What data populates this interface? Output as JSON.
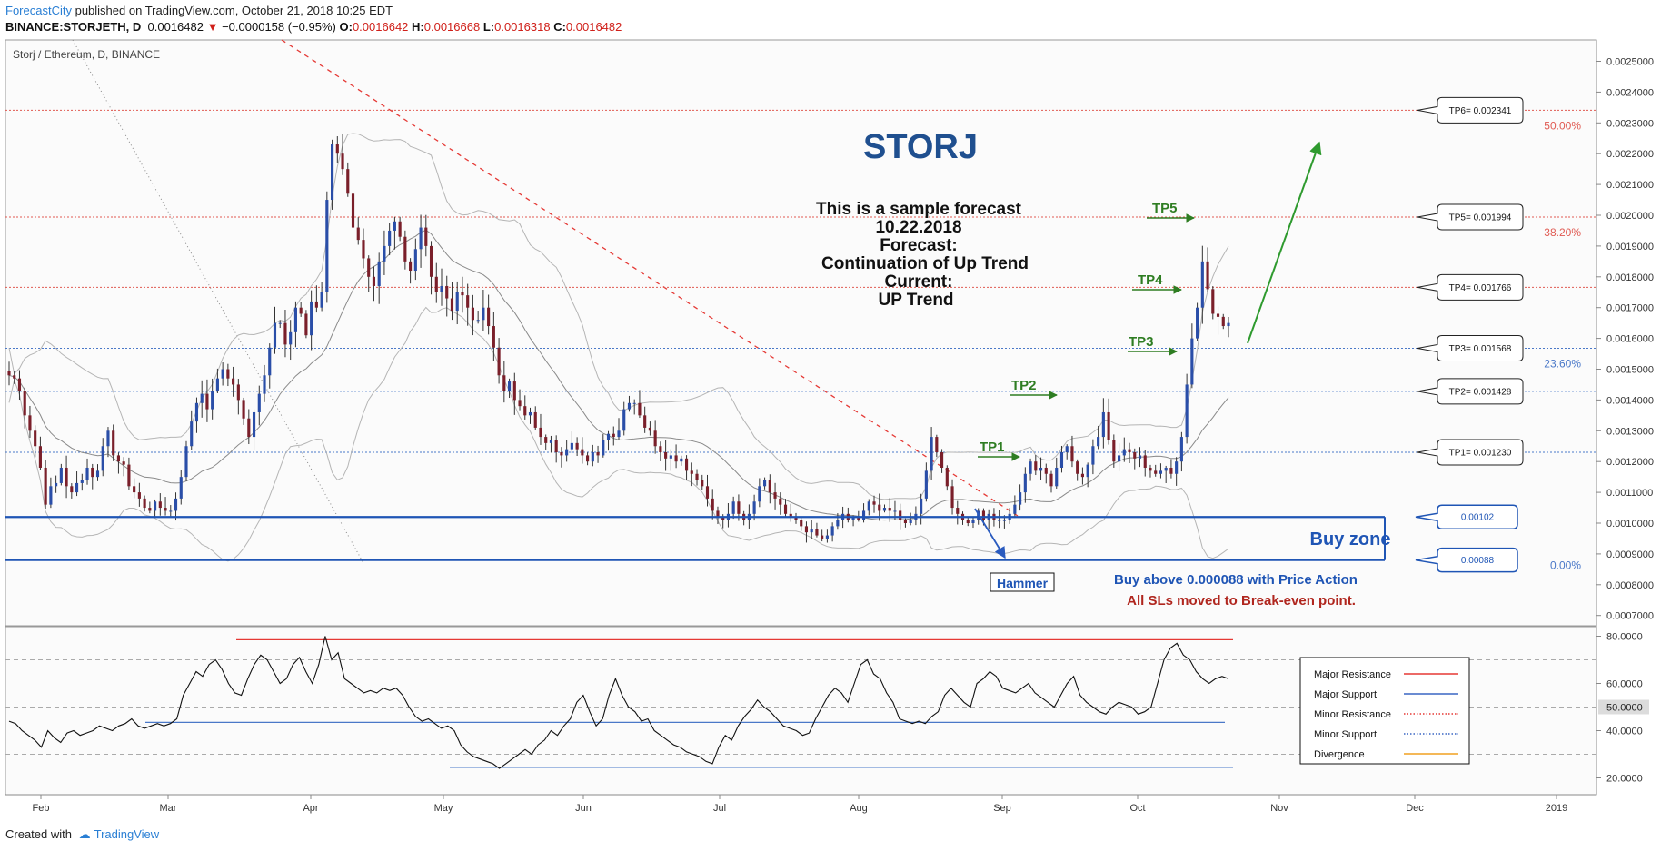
{
  "header": {
    "brand": "ForecastCity",
    "publish_text": "published on TradingView.com, October 21, 2018 10:25 EDT",
    "symbol": "BINANCE:STORJETH, D",
    "last_price": "0.0016482",
    "change": "−0.0000158 (−0.95%)",
    "open_label": "O:",
    "open": "0.0016642",
    "high_label": "H:",
    "high": "0.0016668",
    "low_label": "L:",
    "low": "0.0016318",
    "close_label": "C:",
    "close": "0.0016482"
  },
  "footer": {
    "created_with": "Created with",
    "brand": "TradingView"
  },
  "chart_data": [
    {
      "type": "candlestick",
      "title": "Storj / Ethereum, D, BINANCE",
      "x_ticks": [
        "Feb",
        "Mar",
        "Apr",
        "May",
        "Jun",
        "Jul",
        "Aug",
        "Sep",
        "Oct",
        "Nov",
        "Dec",
        "2019"
      ],
      "x_range": [
        "2018-01-23",
        "2019-01-06"
      ],
      "ylim": [
        0.00068,
        0.00256
      ],
      "y_ticks": [
        "0.0025000",
        "0.0024000",
        "0.0023000",
        "0.0022000",
        "0.0021000",
        "0.0020000",
        "0.0019000",
        "0.0018000",
        "0.0017000",
        "0.0016000",
        "0.0015000",
        "0.0014000",
        "0.0013000",
        "0.0012000",
        "0.0011000",
        "0.0010000",
        "0.0009000",
        "0.0008000",
        "0.0007000"
      ],
      "close_series": [
        0.00148,
        0.00147,
        0.00143,
        0.00135,
        0.0013,
        0.00125,
        0.00118,
        0.00106,
        0.00112,
        0.00113,
        0.00118,
        0.00112,
        0.0011,
        0.00113,
        0.00114,
        0.00118,
        0.00115,
        0.00117,
        0.00125,
        0.0013,
        0.00122,
        0.0012,
        0.00119,
        0.00112,
        0.0011,
        0.00108,
        0.00105,
        0.00104,
        0.00107,
        0.00105,
        0.00104,
        0.00104,
        0.00108,
        0.00115,
        0.00125,
        0.00133,
        0.00139,
        0.00142,
        0.00137,
        0.00143,
        0.00147,
        0.0015,
        0.00147,
        0.00145,
        0.0014,
        0.00134,
        0.00128,
        0.00136,
        0.00142,
        0.00148,
        0.00157,
        0.00165,
        0.00165,
        0.00158,
        0.00162,
        0.0017,
        0.00168,
        0.00161,
        0.00172,
        0.0017,
        0.00175,
        0.00205,
        0.00223,
        0.0022,
        0.00215,
        0.00207,
        0.00196,
        0.00192,
        0.00186,
        0.0018,
        0.00177,
        0.00185,
        0.0019,
        0.00195,
        0.00198,
        0.00193,
        0.00185,
        0.00182,
        0.00189,
        0.00196,
        0.0019,
        0.0018,
        0.00175,
        0.00177,
        0.00173,
        0.00169,
        0.00175,
        0.00174,
        0.0017,
        0.00166,
        0.00166,
        0.0017,
        0.00164,
        0.00157,
        0.00148,
        0.00143,
        0.00146,
        0.0014,
        0.00138,
        0.00135,
        0.00136,
        0.00131,
        0.00128,
        0.00126,
        0.00127,
        0.00123,
        0.00122,
        0.00124,
        0.00126,
        0.00124,
        0.00122,
        0.0012,
        0.00123,
        0.00122,
        0.00127,
        0.00129,
        0.00128,
        0.0013,
        0.00137,
        0.00139,
        0.00139,
        0.00135,
        0.00131,
        0.0013,
        0.00125,
        0.00123,
        0.00121,
        0.00122,
        0.0012,
        0.00121,
        0.00117,
        0.00116,
        0.00114,
        0.00112,
        0.00108,
        0.00104,
        0.00102,
        0.00101,
        0.00103,
        0.00107,
        0.00103,
        0.00101,
        0.00103,
        0.00107,
        0.00112,
        0.00114,
        0.0011,
        0.00108,
        0.00106,
        0.00103,
        0.00102,
        0.00101,
        0.00099,
        0.00097,
        0.00098,
        0.00096,
        0.00095,
        0.00096,
        0.00099,
        0.00101,
        0.00103,
        0.00101,
        0.00102,
        0.00101,
        0.00104,
        0.00107,
        0.00106,
        0.00104,
        0.00105,
        0.00104,
        0.00104,
        0.00101,
        0.001,
        0.00101,
        0.00103,
        0.00108,
        0.00117,
        0.00128,
        0.00123,
        0.00118,
        0.00112,
        0.00105,
        0.00103,
        0.00101,
        0.001,
        0.00101,
        0.00104,
        0.00101,
        0.00103,
        0.00101,
        0.00101,
        0.00101,
        0.00103,
        0.00106,
        0.0011,
        0.00116,
        0.0012,
        0.00117,
        0.00118,
        0.00116,
        0.00112,
        0.00118,
        0.00123,
        0.00125,
        0.0012,
        0.00116,
        0.00115,
        0.00119,
        0.00125,
        0.00128,
        0.00136,
        0.00127,
        0.0012,
        0.00122,
        0.00124,
        0.00123,
        0.00121,
        0.00122,
        0.00118,
        0.00117,
        0.00116,
        0.00117,
        0.00118,
        0.00116,
        0.0012,
        0.00128,
        0.00145,
        0.0016,
        0.0017,
        0.00185,
        0.00176,
        0.00168,
        0.00167,
        0.00164,
        0.00165
      ],
      "levels": [
        {
          "label": "TP6= 0.002341",
          "value": 0.002341,
          "color": "#e05a52",
          "fib": "50.00%"
        },
        {
          "label": "TP5= 0.001994",
          "value": 0.001994,
          "color": "#e05a52",
          "fib": "38.20%"
        },
        {
          "label": "TP4= 0.001766",
          "value": 0.001766,
          "color": "#e05a52",
          "fib": ""
        },
        {
          "label": "TP3= 0.001568",
          "value": 0.001568,
          "color": "#4a78c8",
          "fib": "23.60%"
        },
        {
          "label": "TP2= 0.001428",
          "value": 0.001428,
          "color": "#4a78c8",
          "fib": ""
        },
        {
          "label": "TP1= 0.001230",
          "value": 0.00123,
          "color": "#4a78c8",
          "fib": ""
        }
      ],
      "buy_zone": {
        "top": 0.00102,
        "bottom": 0.00088,
        "top_label": "0.00102",
        "bottom_label": "0.00088",
        "title": "Buy zone",
        "fib_bottom": "0.00%"
      },
      "tp_markers": [
        "TP1",
        "TP2",
        "TP3",
        "TP4",
        "TP5"
      ],
      "annotations": {
        "headline": "STORJ",
        "lines": [
          "This is a sample forecast",
          "10.22.2018",
          "Forecast:",
          "Continuation of Up Trend",
          "Current:",
          "UP Trend"
        ],
        "hammer": "Hammer",
        "buy_above": "Buy above 0.000088 with Price Action",
        "sl_note": "All SLs moved to Break-even point."
      }
    },
    {
      "type": "line",
      "ylim": [
        15,
        82
      ],
      "y_ticks": [
        "80.0000",
        "60.0000",
        "40.0000",
        "20.0000"
      ],
      "current_value": "50.0000",
      "rsi_values": [
        44,
        43,
        40,
        38,
        36,
        33,
        40,
        37,
        35,
        39,
        40,
        38,
        39,
        40,
        42,
        41,
        40,
        42,
        43,
        45,
        42,
        41,
        42,
        43,
        42,
        43,
        45,
        55,
        60,
        65,
        63,
        68,
        70,
        66,
        60,
        56,
        55,
        62,
        68,
        72,
        70,
        65,
        60,
        62,
        68,
        71,
        65,
        60,
        68,
        80,
        70,
        73,
        62,
        60,
        58,
        56,
        57,
        56,
        58,
        57,
        58,
        55,
        50,
        46,
        44,
        45,
        43,
        41,
        42,
        40,
        34,
        31,
        29,
        28,
        27,
        26,
        24,
        26,
        28,
        30,
        32,
        30,
        34,
        36,
        40,
        38,
        42,
        45,
        52,
        55,
        48,
        42,
        45,
        55,
        62,
        55,
        50,
        48,
        44,
        45,
        40,
        38,
        36,
        34,
        33,
        31,
        30,
        29,
        27,
        26,
        33,
        38,
        36,
        42,
        46,
        49,
        53,
        50,
        48,
        45,
        42,
        41,
        40,
        38,
        39,
        45,
        50,
        55,
        58,
        56,
        52,
        60,
        68,
        70,
        64,
        62,
        56,
        52,
        45,
        44,
        43,
        44,
        43,
        46,
        48,
        55,
        58,
        55,
        52,
        50,
        60,
        62,
        65,
        63,
        58,
        57,
        56,
        58,
        60,
        56,
        54,
        52,
        50,
        55,
        60,
        63,
        55,
        52,
        50,
        48,
        47,
        50,
        52,
        51,
        50,
        47,
        48,
        50,
        60,
        70,
        75,
        77,
        72,
        70,
        65,
        62,
        60,
        62,
        63,
        62
      ],
      "lines": [
        {
          "name": "Major Resistance",
          "value": 78.5,
          "color": "#e53935",
          "dash": "solid"
        },
        {
          "name": "Major Support",
          "value": 24.5,
          "color": "#4a78c8",
          "dash": "solid"
        },
        {
          "name": "Minor Support",
          "value": 43.5,
          "color": "#4a78c8",
          "dash": "solid"
        }
      ],
      "legend": [
        {
          "name": "Major Resistance",
          "color": "#e53935",
          "dash": "solid"
        },
        {
          "name": "Major Support",
          "color": "#3a66c4",
          "dash": "solid"
        },
        {
          "name": "Minor Resistance",
          "color": "#e53935",
          "dash": "dotted"
        },
        {
          "name": "Minor Support",
          "color": "#3a66c4",
          "dash": "dotted"
        },
        {
          "name": "Divergence",
          "color": "#f0a020",
          "dash": "solid"
        }
      ]
    }
  ]
}
